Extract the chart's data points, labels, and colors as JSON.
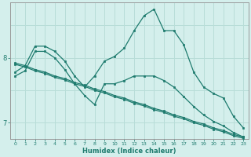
{
  "xlabel": "Humidex (Indice chaleur)",
  "ylabel": "",
  "bg_color": "#d4efec",
  "line_color": "#1e7b6e",
  "grid_color": "#b8ddd8",
  "axis_color": "#999999",
  "xlim": [
    -0.5,
    23.5
  ],
  "ylim": [
    6.75,
    8.85
  ],
  "yticks": [
    7,
    8
  ],
  "xticks": [
    0,
    1,
    2,
    3,
    4,
    5,
    6,
    7,
    8,
    9,
    10,
    11,
    12,
    13,
    14,
    15,
    16,
    17,
    18,
    19,
    20,
    21,
    22,
    23
  ],
  "series": [
    {
      "x": [
        0,
        1,
        2,
        3,
        4,
        5,
        6,
        7,
        8,
        9,
        10,
        11,
        12,
        13,
        14,
        15,
        16,
        17,
        18,
        19,
        20,
        21,
        22,
        23
      ],
      "y": [
        7.78,
        7.88,
        8.18,
        8.18,
        8.1,
        7.95,
        7.72,
        7.55,
        7.72,
        7.95,
        8.02,
        8.15,
        8.42,
        8.65,
        8.75,
        8.42,
        8.42,
        8.2,
        7.78,
        7.55,
        7.45,
        7.38,
        7.1,
        6.92
      ]
    },
    {
      "x": [
        0,
        1,
        2,
        3,
        4,
        5,
        6,
        7,
        8,
        9,
        10,
        11,
        12,
        13,
        14,
        15,
        16,
        17,
        18,
        19,
        20,
        21,
        22,
        23
      ],
      "y": [
        7.72,
        7.8,
        8.1,
        8.1,
        8.0,
        7.82,
        7.6,
        7.42,
        7.28,
        7.6,
        7.6,
        7.65,
        7.72,
        7.72,
        7.72,
        7.65,
        7.55,
        7.4,
        7.25,
        7.12,
        7.02,
        6.95,
        6.85,
        6.78
      ]
    },
    {
      "x": [
        0,
        1,
        2,
        3,
        4,
        5,
        6,
        7,
        8,
        9,
        10,
        11,
        12,
        13,
        14,
        15,
        16,
        17,
        18,
        19,
        20,
        21,
        22,
        23
      ],
      "y": [
        7.92,
        7.88,
        7.82,
        7.78,
        7.72,
        7.68,
        7.62,
        7.58,
        7.52,
        7.48,
        7.42,
        7.38,
        7.32,
        7.28,
        7.22,
        7.18,
        7.12,
        7.08,
        7.02,
        6.98,
        6.92,
        6.88,
        6.82,
        6.78
      ]
    },
    {
      "x": [
        0,
        1,
        2,
        3,
        4,
        5,
        6,
        7,
        8,
        9,
        10,
        11,
        12,
        13,
        14,
        15,
        16,
        17,
        18,
        19,
        20,
        21,
        22,
        23
      ],
      "y": [
        7.9,
        7.86,
        7.8,
        7.76,
        7.7,
        7.66,
        7.6,
        7.56,
        7.5,
        7.46,
        7.4,
        7.36,
        7.3,
        7.26,
        7.2,
        7.16,
        7.1,
        7.06,
        7.0,
        6.96,
        6.9,
        6.86,
        6.8,
        6.76
      ]
    }
  ]
}
